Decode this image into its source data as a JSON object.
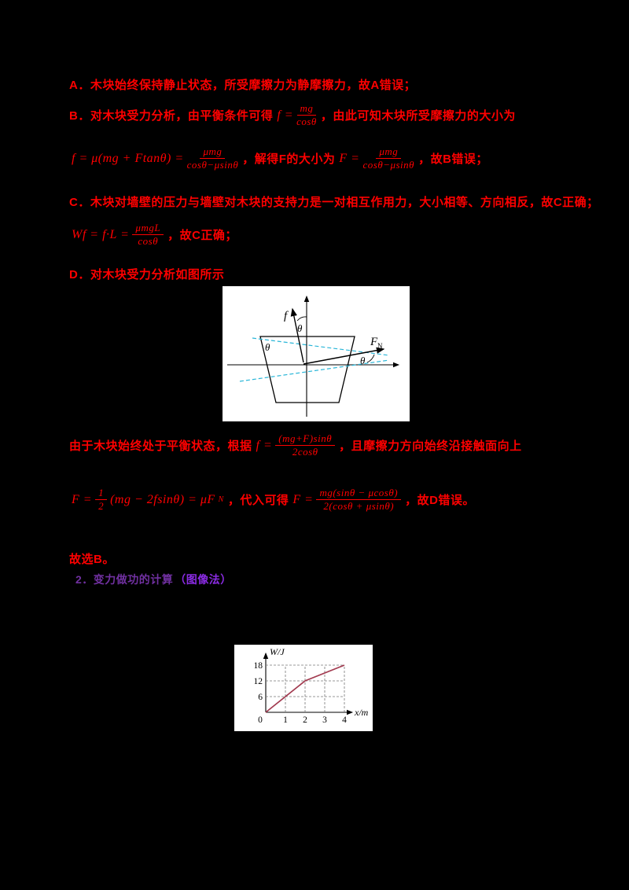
{
  "page": {
    "background": "#000000"
  },
  "colors": {
    "text_red": "#FF0000",
    "footer_purple": "#7030A0",
    "footer_violet": "#8A2BE2",
    "figure_dash_cyan": "#29B6D8",
    "chart_line": "#A23B50"
  },
  "solution": {
    "line_a": "A．木块始终保持静止状态，所受摩擦力为静摩擦力，故A错误；",
    "line_b_pre": "B．对木块受力分析，由平衡条件可得",
    "line_b_post": "，由此可知木块所受摩擦力的大小为",
    "mid_solve": "，解得F的大小为",
    "tail_b": "，故B错误；",
    "line_c": "C．木块对墙壁的压力与墙壁对木块的支持力是一对相互作用力，大小相等、方向相反，故C正确；",
    "tail_c": "，故C正确；",
    "line_d": "D．对木块受力分析如图所示",
    "line_e_pre": "由于木块始终处于平衡状态，根据",
    "line_e_post": "，且摩擦力方向始终沿接触面向上",
    "mid_sub": "，代入可得",
    "tail_d": "，故D错误。",
    "answer": "故选B。",
    "footer_purple": "2．变力做功的计算",
    "footer_violet": "（图像法）"
  },
  "formulas": {
    "f1": {
      "lhs": "f =",
      "num": "mg",
      "den": "cosθ"
    },
    "f2": {
      "lhs": "f = μ(mg + Ftanθ) =",
      "num": "μmg",
      "den": "cosθ−μsinθ"
    },
    "f3": {
      "lhs": "F =",
      "num": "μmg",
      "den": "cosθ−μsinθ"
    },
    "f4": {
      "lhs": "Wf = f·L =",
      "num": "μmgL",
      "den": "cosθ"
    },
    "f5": {
      "lhs": "f =",
      "num": "(mg+F)sinθ",
      "den": "2cosθ"
    },
    "f6": {
      "lhs": "F =",
      "num": "1",
      "den": "2",
      "rhs": "(mg − 2fsinθ) = μF",
      "rhs_sub": "N"
    },
    "f7": {
      "lhs": "F =",
      "num": "mg(sinθ − μcosθ)",
      "den": "2(cosθ + μsinθ)"
    }
  },
  "figure": {
    "label_f": "f",
    "label_theta_top": "θ",
    "label_theta_left": "θ",
    "label_FN_main": "F",
    "label_FN_sub": "N",
    "label_theta_right": "θ"
  },
  "chart_data": {
    "type": "line",
    "title": "",
    "xlabel": "x/m",
    "ylabel": "W/J",
    "xticks": [
      0,
      1,
      2,
      3,
      4
    ],
    "yticks": [
      6,
      12,
      18
    ],
    "xlim": [
      0,
      4.6
    ],
    "ylim": [
      0,
      21
    ],
    "grid": "dashed",
    "legend": "none",
    "series": [
      {
        "name": "W",
        "points": [
          [
            0,
            0
          ],
          [
            2,
            12
          ],
          [
            4,
            18
          ]
        ]
      }
    ],
    "line_color": "#A23B50"
  }
}
